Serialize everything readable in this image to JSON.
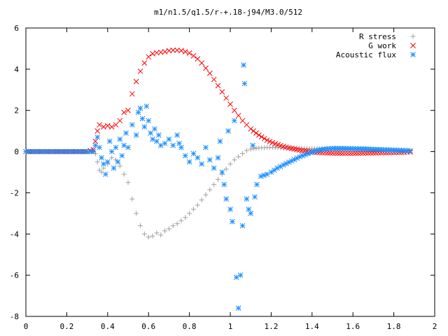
{
  "chart_data": {
    "type": "scatter",
    "title": "m1/n1.5/q1.5/r-+.18-j94/M3.0/512",
    "xlabel": "",
    "ylabel": "",
    "xlim": [
      0,
      2
    ],
    "ylim": [
      -8,
      6
    ],
    "xticks": [
      "0",
      "0.2",
      "0.4",
      "0.6",
      "0.8",
      "1",
      "1.2",
      "1.4",
      "1.6",
      "1.8",
      "2"
    ],
    "yticks": [
      "-8",
      "-6",
      "-4",
      "-2",
      "0",
      "2",
      "4",
      "6"
    ],
    "grid": false,
    "legend_position": "top-right",
    "series": [
      {
        "name": "R stress",
        "color": "#a0a0a0",
        "marker": "plus",
        "points": [
          [
            0.0,
            0.0
          ],
          [
            0.1,
            0.0
          ],
          [
            0.2,
            0.0
          ],
          [
            0.3,
            0.0
          ],
          [
            0.33,
            0.0
          ],
          [
            0.34,
            -0.1
          ],
          [
            0.35,
            -0.5
          ],
          [
            0.36,
            -0.9
          ],
          [
            0.37,
            -1.0
          ],
          [
            0.38,
            -0.8
          ],
          [
            0.4,
            -0.6
          ],
          [
            0.42,
            -0.3
          ],
          [
            0.44,
            -0.4
          ],
          [
            0.46,
            -0.7
          ],
          [
            0.48,
            -1.1
          ],
          [
            0.5,
            -1.5
          ],
          [
            0.52,
            -2.3
          ],
          [
            0.54,
            -3.0
          ],
          [
            0.56,
            -3.6
          ],
          [
            0.58,
            -4.0
          ],
          [
            0.6,
            -4.15
          ],
          [
            0.62,
            -4.1
          ],
          [
            0.64,
            -3.95
          ],
          [
            0.66,
            -4.05
          ],
          [
            0.68,
            -3.85
          ],
          [
            0.7,
            -3.75
          ],
          [
            0.72,
            -3.6
          ],
          [
            0.74,
            -3.5
          ],
          [
            0.76,
            -3.35
          ],
          [
            0.78,
            -3.2
          ],
          [
            0.8,
            -3.0
          ],
          [
            0.82,
            -2.8
          ],
          [
            0.84,
            -2.6
          ],
          [
            0.86,
            -2.35
          ],
          [
            0.88,
            -2.1
          ],
          [
            0.9,
            -1.85
          ],
          [
            0.92,
            -1.6
          ],
          [
            0.94,
            -1.35
          ],
          [
            0.96,
            -1.1
          ],
          [
            0.98,
            -0.85
          ],
          [
            1.0,
            -0.6
          ],
          [
            1.02,
            -0.4
          ],
          [
            1.04,
            -0.25
          ],
          [
            1.06,
            -0.1
          ],
          [
            1.08,
            0.05
          ],
          [
            1.1,
            0.12
          ],
          [
            1.14,
            0.18
          ],
          [
            1.18,
            0.2
          ],
          [
            1.22,
            0.2
          ],
          [
            1.26,
            0.18
          ],
          [
            1.3,
            0.17
          ],
          [
            1.35,
            0.15
          ],
          [
            1.4,
            0.14
          ],
          [
            1.45,
            0.13
          ],
          [
            1.5,
            0.12
          ],
          [
            1.55,
            0.12
          ],
          [
            1.6,
            0.11
          ],
          [
            1.65,
            0.1
          ],
          [
            1.7,
            0.09
          ],
          [
            1.75,
            0.08
          ],
          [
            1.8,
            0.07
          ],
          [
            1.85,
            0.06
          ],
          [
            1.88,
            0.05
          ]
        ]
      },
      {
        "name": "G work",
        "color": "#ff0000",
        "marker": "cross",
        "points": [
          [
            0.0,
            0.0
          ],
          [
            0.1,
            0.0
          ],
          [
            0.2,
            0.0
          ],
          [
            0.3,
            0.0
          ],
          [
            0.33,
            0.1
          ],
          [
            0.34,
            0.5
          ],
          [
            0.35,
            1.0
          ],
          [
            0.36,
            1.3
          ],
          [
            0.38,
            1.2
          ],
          [
            0.4,
            1.25
          ],
          [
            0.42,
            1.2
          ],
          [
            0.44,
            1.3
          ],
          [
            0.46,
            1.5
          ],
          [
            0.48,
            1.9
          ],
          [
            0.5,
            2.0
          ],
          [
            0.52,
            2.8
          ],
          [
            0.54,
            3.4
          ],
          [
            0.56,
            3.9
          ],
          [
            0.58,
            4.3
          ],
          [
            0.6,
            4.6
          ],
          [
            0.62,
            4.75
          ],
          [
            0.64,
            4.8
          ],
          [
            0.66,
            4.82
          ],
          [
            0.68,
            4.85
          ],
          [
            0.7,
            4.9
          ],
          [
            0.72,
            4.92
          ],
          [
            0.74,
            4.92
          ],
          [
            0.76,
            4.9
          ],
          [
            0.78,
            4.85
          ],
          [
            0.8,
            4.78
          ],
          [
            0.82,
            4.65
          ],
          [
            0.84,
            4.5
          ],
          [
            0.86,
            4.3
          ],
          [
            0.88,
            4.05
          ],
          [
            0.9,
            3.8
          ],
          [
            0.92,
            3.5
          ],
          [
            0.94,
            3.2
          ],
          [
            0.96,
            2.9
          ],
          [
            0.98,
            2.6
          ],
          [
            1.0,
            2.3
          ],
          [
            1.02,
            2.0
          ],
          [
            1.04,
            1.75
          ],
          [
            1.06,
            1.5
          ],
          [
            1.08,
            1.3
          ],
          [
            1.1,
            1.1
          ],
          [
            1.14,
            0.8
          ],
          [
            1.18,
            0.55
          ],
          [
            1.22,
            0.38
          ],
          [
            1.26,
            0.25
          ],
          [
            1.3,
            0.15
          ],
          [
            1.35,
            0.05
          ],
          [
            1.4,
            -0.02
          ],
          [
            1.45,
            -0.05
          ],
          [
            1.5,
            -0.07
          ],
          [
            1.55,
            -0.08
          ],
          [
            1.6,
            -0.08
          ],
          [
            1.65,
            -0.07
          ],
          [
            1.7,
            -0.06
          ],
          [
            1.75,
            -0.05
          ],
          [
            1.8,
            -0.04
          ],
          [
            1.85,
            -0.03
          ],
          [
            1.88,
            -0.02
          ]
        ]
      },
      {
        "name": "Acoustic flux",
        "color": "#1e90ff",
        "marker": "star",
        "points": [
          [
            0.0,
            0.0
          ],
          [
            0.03,
            0.0
          ],
          [
            0.06,
            0.0
          ],
          [
            0.09,
            0.0
          ],
          [
            0.12,
            0.0
          ],
          [
            0.15,
            0.0
          ],
          [
            0.18,
            0.0
          ],
          [
            0.21,
            0.0
          ],
          [
            0.24,
            0.0
          ],
          [
            0.27,
            0.0
          ],
          [
            0.3,
            0.0
          ],
          [
            0.33,
            0.0
          ],
          [
            0.34,
            0.3
          ],
          [
            0.35,
            0.7
          ],
          [
            0.36,
            0.2
          ],
          [
            0.37,
            -0.3
          ],
          [
            0.38,
            -0.6
          ],
          [
            0.39,
            -1.1
          ],
          [
            0.4,
            -0.5
          ],
          [
            0.41,
            0.5
          ],
          [
            0.42,
            0.0
          ],
          [
            0.43,
            -0.8
          ],
          [
            0.44,
            0.2
          ],
          [
            0.45,
            -0.5
          ],
          [
            0.46,
            0.6
          ],
          [
            0.47,
            -0.2
          ],
          [
            0.48,
            0.3
          ],
          [
            0.49,
            0.9
          ],
          [
            0.5,
            0.2
          ],
          [
            0.52,
            1.3
          ],
          [
            0.54,
            0.8
          ],
          [
            0.55,
            1.9
          ],
          [
            0.56,
            2.1
          ],
          [
            0.57,
            1.6
          ],
          [
            0.58,
            1.2
          ],
          [
            0.59,
            2.2
          ],
          [
            0.6,
            1.5
          ],
          [
            0.61,
            0.9
          ],
          [
            0.62,
            0.6
          ],
          [
            0.63,
            1.1
          ],
          [
            0.64,
            0.5
          ],
          [
            0.65,
            0.8
          ],
          [
            0.66,
            0.3
          ],
          [
            0.68,
            0.4
          ],
          [
            0.7,
            0.6
          ],
          [
            0.72,
            0.3
          ],
          [
            0.74,
            0.8
          ],
          [
            0.75,
            0.4
          ],
          [
            0.76,
            0.2
          ],
          [
            0.78,
            -0.2
          ],
          [
            0.8,
            -0.5
          ],
          [
            0.82,
            -0.1
          ],
          [
            0.84,
            -0.3
          ],
          [
            0.86,
            -0.6
          ],
          [
            0.88,
            0.2
          ],
          [
            0.9,
            -0.4
          ],
          [
            0.92,
            -0.8
          ],
          [
            0.94,
            -0.3
          ],
          [
            0.95,
            0.5
          ],
          [
            0.96,
            -1.0
          ],
          [
            0.97,
            -1.6
          ],
          [
            0.98,
            -2.3
          ],
          [
            0.99,
            1.0
          ],
          [
            1.0,
            -2.8
          ],
          [
            1.01,
            -3.4
          ],
          [
            1.02,
            1.5
          ],
          [
            1.03,
            -6.1
          ],
          [
            1.04,
            -7.6
          ],
          [
            1.05,
            -6.0
          ],
          [
            1.06,
            -3.6
          ],
          [
            1.065,
            4.2
          ],
          [
            1.07,
            3.3
          ],
          [
            1.08,
            -2.3
          ],
          [
            1.09,
            -2.8
          ],
          [
            1.1,
            -3.0
          ],
          [
            1.11,
            0.3
          ],
          [
            1.12,
            -2.2
          ],
          [
            1.13,
            -1.6
          ],
          [
            1.15,
            -1.2
          ],
          [
            1.18,
            -1.1
          ],
          [
            1.2,
            -1.0
          ],
          [
            1.23,
            -0.8
          ],
          [
            1.26,
            -0.65
          ],
          [
            1.3,
            -0.45
          ],
          [
            1.34,
            -0.25
          ],
          [
            1.38,
            -0.1
          ],
          [
            1.42,
            0.05
          ],
          [
            1.46,
            0.12
          ],
          [
            1.5,
            0.15
          ],
          [
            1.55,
            0.15
          ],
          [
            1.6,
            0.14
          ],
          [
            1.65,
            0.13
          ],
          [
            1.7,
            0.11
          ],
          [
            1.75,
            0.09
          ],
          [
            1.8,
            0.07
          ],
          [
            1.85,
            0.05
          ],
          [
            1.88,
            0.04
          ]
        ]
      }
    ]
  }
}
